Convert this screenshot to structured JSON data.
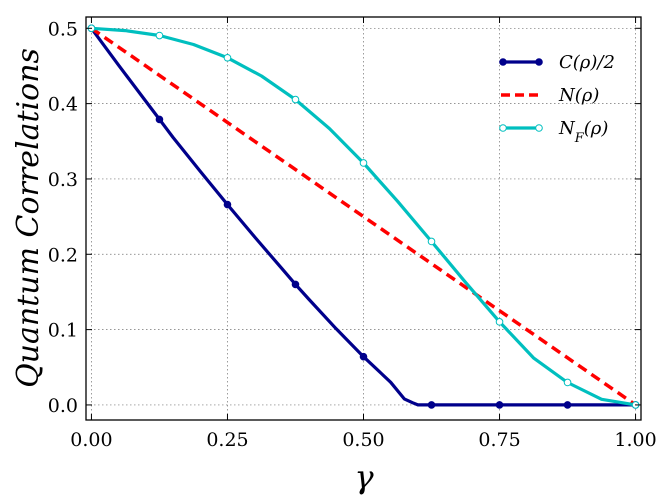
{
  "chart_data": {
    "type": "line",
    "xlabel": "γ",
    "ylabel": "Quantum Correlations",
    "xlim": [
      -0.01,
      1.01
    ],
    "ylim": [
      -0.02,
      0.515
    ],
    "grid": true,
    "legend_position": "top-right",
    "x_ticks": [
      0.0,
      0.25,
      0.5,
      0.75,
      1.0
    ],
    "x_tick_labels": [
      "0.00",
      "0.25",
      "0.50",
      "0.75",
      "1.00"
    ],
    "y_ticks": [
      0.0,
      0.1,
      0.2,
      0.3,
      0.4,
      0.5
    ],
    "y_tick_labels": [
      "0.0",
      "0.1",
      "0.2",
      "0.3",
      "0.4",
      "0.5"
    ],
    "series": [
      {
        "name": "C(ρ)/2",
        "color": "#00008b",
        "style": "solid",
        "marker": "filled-circle",
        "x": [
          0.0,
          0.05,
          0.1,
          0.125,
          0.15,
          0.2,
          0.25,
          0.3,
          0.35,
          0.375,
          0.4,
          0.45,
          0.5,
          0.55,
          0.575,
          0.59,
          0.6,
          0.625,
          0.75,
          0.875,
          1.0
        ],
        "y": [
          0.5,
          0.451,
          0.403,
          0.379,
          0.355,
          0.31,
          0.266,
          0.223,
          0.181,
          0.16,
          0.14,
          0.101,
          0.064,
          0.03,
          0.008,
          0.003,
          0.0,
          0.0,
          0.0,
          0.0,
          0.0
        ],
        "marker_x": [
          0.0,
          0.125,
          0.25,
          0.375,
          0.5,
          0.625,
          0.75,
          0.875,
          1.0
        ],
        "marker_y": [
          0.5,
          0.379,
          0.266,
          0.16,
          0.064,
          0.0,
          0.0,
          0.0,
          0.0
        ]
      },
      {
        "name": "N(ρ)",
        "color": "#ff0000",
        "style": "dashed",
        "marker": "none",
        "x": [
          0.0,
          1.0
        ],
        "y": [
          0.5,
          0.0
        ]
      },
      {
        "name": "N_F(ρ)",
        "color": "#00bfbf",
        "style": "solid",
        "marker": "open-circle",
        "x": [
          0.0,
          0.0625,
          0.125,
          0.1875,
          0.25,
          0.3125,
          0.375,
          0.4375,
          0.5,
          0.5625,
          0.625,
          0.6875,
          0.75,
          0.8125,
          0.875,
          0.9375,
          1.0
        ],
        "y": [
          0.5,
          0.4969,
          0.4904,
          0.4785,
          0.4609,
          0.4367,
          0.4054,
          0.3669,
          0.3212,
          0.2705,
          0.217,
          0.1628,
          0.1103,
          0.0624,
          0.0298,
          0.0075,
          0.0
        ],
        "marker_x": [
          0.0,
          0.125,
          0.25,
          0.375,
          0.5,
          0.625,
          0.75,
          0.875,
          1.0
        ],
        "marker_y": [
          0.5,
          0.4904,
          0.4609,
          0.4054,
          0.3212,
          0.217,
          0.1103,
          0.0298,
          0.0
        ]
      }
    ]
  }
}
